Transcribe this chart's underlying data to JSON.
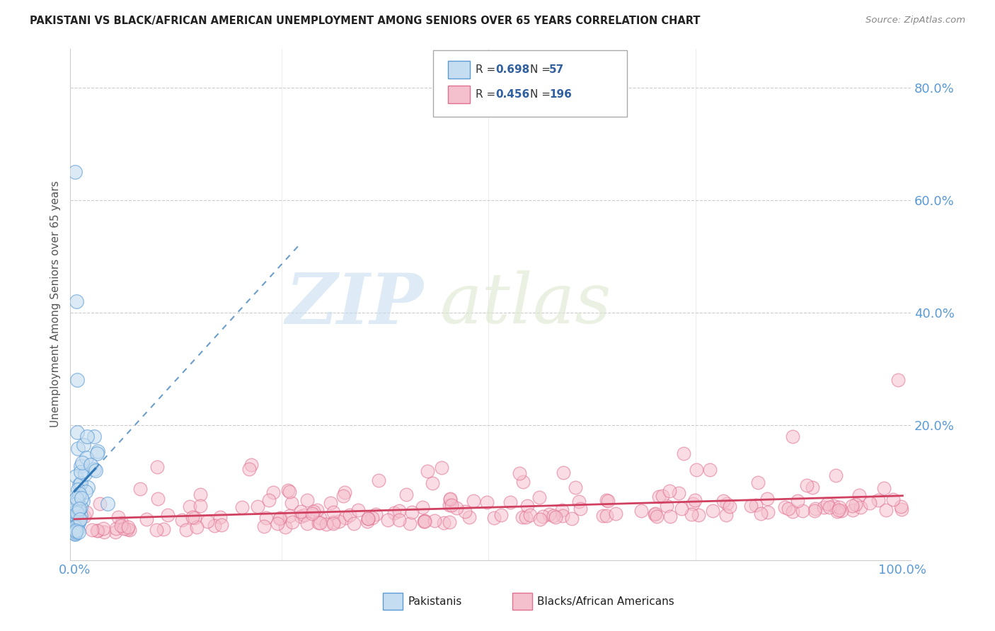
{
  "title": "PAKISTANI VS BLACK/AFRICAN AMERICAN UNEMPLOYMENT AMONG SENIORS OVER 65 YEARS CORRELATION CHART",
  "source": "Source: ZipAtlas.com",
  "ylabel": "Unemployment Among Seniors over 65 years",
  "legend_r1": "0.698",
  "legend_n1": "57",
  "legend_r2": "0.456",
  "legend_n2": "196",
  "watermark_zip": "ZIP",
  "watermark_atlas": "atlas",
  "blue_fill": "#c5ddf0",
  "blue_edge": "#5b9bd5",
  "blue_line": "#2e75b6",
  "pink_fill": "#f5c0ce",
  "pink_edge": "#e07090",
  "pink_line": "#d04060",
  "text_color": "#3060a0",
  "background_color": "#ffffff",
  "grid_color": "#cccccc",
  "axis_label_color": "#5b9bd5",
  "ylabel_color": "#555555",
  "title_color": "#222222",
  "source_color": "#888888"
}
